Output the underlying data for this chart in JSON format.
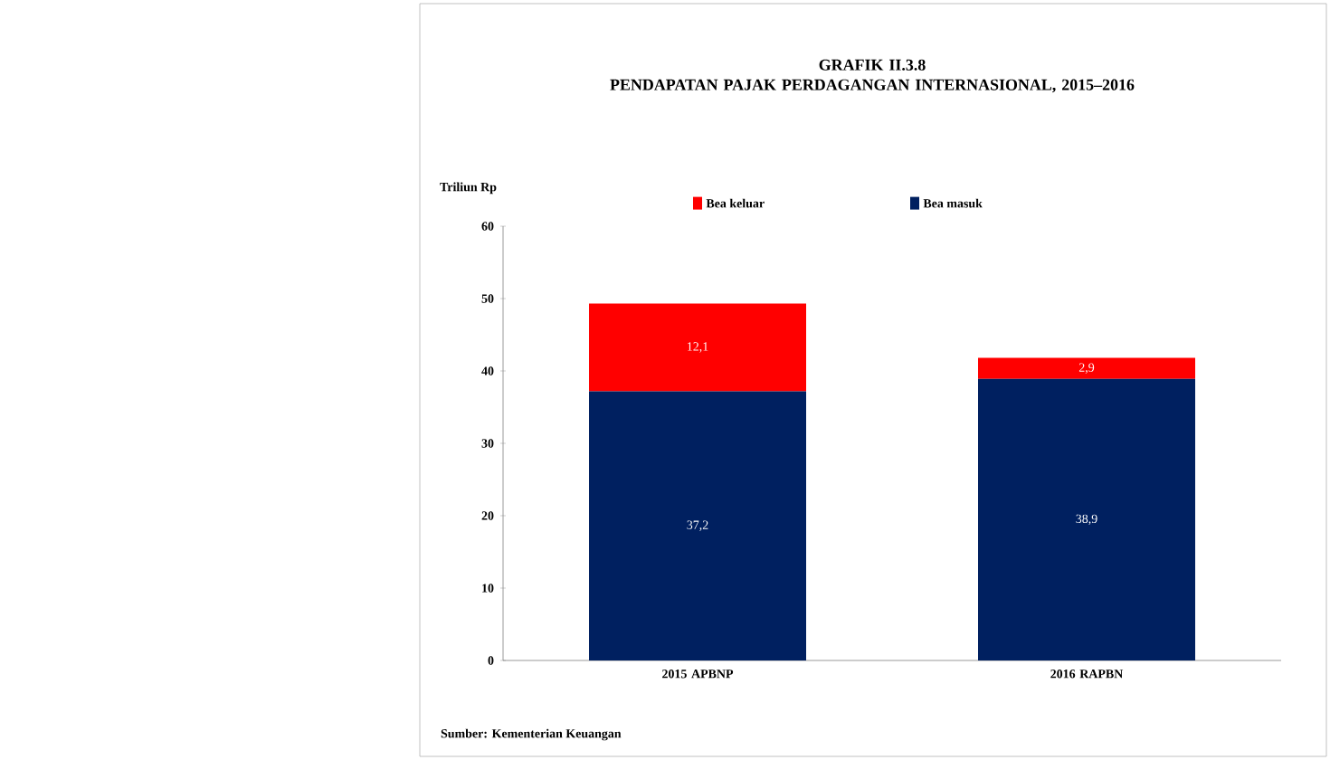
{
  "chart_data": {
    "type": "bar",
    "stacked": true,
    "title": "GRAFIK II.3.8",
    "subtitle": "PENDAPATAN PAJAK PERDAGANGAN INTERNASIONAL, 2015–2016",
    "ylabel": "Triliun Rp",
    "categories": [
      "2015 APBNP",
      "2016 RAPBN"
    ],
    "series": [
      {
        "name": "Bea masuk",
        "color": "#002060",
        "values": [
          37.2,
          38.9
        ],
        "value_labels": [
          "37,2",
          "38,9"
        ]
      },
      {
        "name": "Bea keluar",
        "color": "#ff0000",
        "values": [
          12.1,
          2.9
        ],
        "value_labels": [
          "12,1",
          "2,9"
        ]
      }
    ],
    "ylim": [
      0,
      60
    ],
    "yticks": [
      0,
      10,
      20,
      30,
      40,
      50,
      60
    ],
    "grid": false,
    "legend": "top",
    "annotations": [
      "Sumber: Kementerian Keuangan"
    ]
  }
}
